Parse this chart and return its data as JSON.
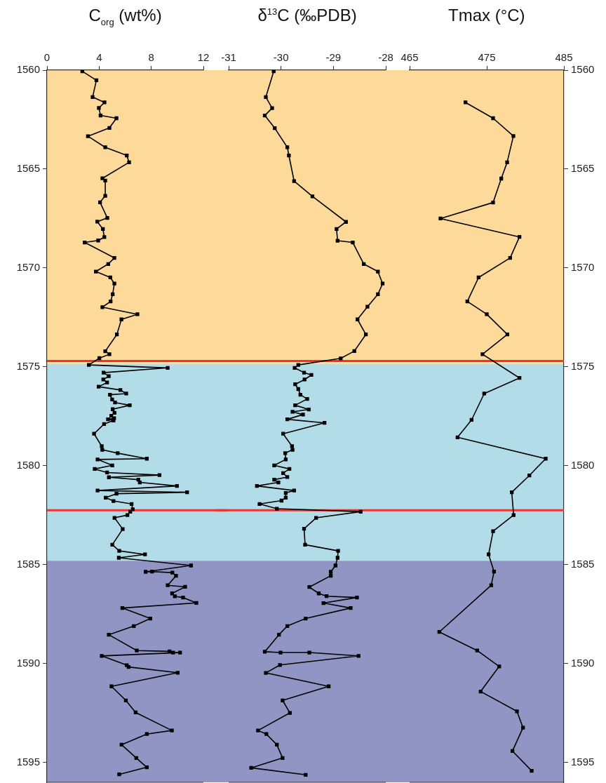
{
  "chart_data": [
    {
      "type": "line",
      "xlabel": "C$_{org}$ (wt%)",
      "color": "#000000",
      "marker": "square",
      "line_style": "solid",
      "legend": false,
      "xlim": [
        0,
        12
      ],
      "xticks": [
        0,
        4,
        8,
        12
      ],
      "ylim": [
        1596,
        1560
      ],
      "yticks": [
        1560,
        1565,
        1570,
        1575,
        1580,
        1585,
        1590,
        1595
      ],
      "x": [
        2.71,
        3.79,
        3.5,
        4.41,
        3.98,
        4.11,
        5.33,
        4.79,
        3.14,
        4.47,
        6.12,
        6.3,
        4.25,
        4.47,
        4.47,
        4.07,
        4.63,
        3.86,
        4.29,
        4.4,
        3.93,
        2.89,
        5.17,
        4.7,
        3.75,
        4.86,
        5.17,
        5.04,
        4.88,
        4.25,
        6.94,
        5.71,
        5.36,
        4.47,
        4.79,
        4.02,
        3.21,
        9.26,
        4.34,
        4.74,
        4.32,
        4.61,
        3.96,
        5.63,
        6.08,
        4.83,
        5.0,
        5.22,
        6.35,
        5.04,
        5.18,
        4.93,
        5.15,
        4.68,
        5.1,
        4.38,
        3.61,
        4.2,
        4.24,
        5.42,
        7.66,
        3.88,
        5.01,
        3.66,
        4.61,
        8.63,
        4.75,
        7.01,
        7.12,
        9.97,
        3.88,
        10.75,
        5.33,
        4.5,
        5.1,
        6.49,
        6.58,
        6.39,
        6.17,
        5.18,
        5.81,
        5.01,
        5.54,
        7.52,
        5.51,
        11.05,
        7.57,
        8.06,
        9.62,
        9.9,
        9.26,
        10.6,
        9.6,
        9.81,
        10.44,
        11.46,
        5.78,
        7.93,
        6.66,
        4.74,
        6.89,
        9.4,
        9.67,
        10.21,
        4.2,
        6.12,
        6.26,
        10.03,
        4.95,
        6.05,
        6.8,
        9.58,
        7.66,
        5.72,
        6.85,
        7.66,
        5.54
      ],
      "values": [
        1560.06,
        1560.51,
        1561.36,
        1561.63,
        1561.91,
        1562.29,
        1562.43,
        1562.92,
        1563.34,
        1563.9,
        1564.31,
        1564.66,
        1565.47,
        1565.58,
        1566.35,
        1566.68,
        1567.47,
        1567.66,
        1568.03,
        1568.44,
        1568.61,
        1568.71,
        1569.49,
        1569.8,
        1570.18,
        1570.48,
        1570.79,
        1571.33,
        1571.69,
        1571.98,
        1572.34,
        1572.6,
        1573.36,
        1574.21,
        1574.36,
        1574.56,
        1574.9,
        1575.05,
        1575.29,
        1575.47,
        1575.64,
        1575.79,
        1576.0,
        1576.17,
        1576.35,
        1576.41,
        1576.65,
        1576.8,
        1576.94,
        1577.14,
        1577.32,
        1577.47,
        1577.6,
        1577.65,
        1577.71,
        1577.89,
        1578.38,
        1579.01,
        1579.19,
        1579.36,
        1579.64,
        1579.68,
        1579.98,
        1580.16,
        1580.34,
        1580.47,
        1580.58,
        1580.7,
        1580.84,
        1581.02,
        1581.25,
        1581.34,
        1581.41,
        1581.61,
        1581.78,
        1581.93,
        1582.2,
        1582.32,
        1582.49,
        1582.63,
        1583.2,
        1583.99,
        1584.3,
        1584.48,
        1584.65,
        1585.04,
        1585.36,
        1585.35,
        1585.4,
        1585.56,
        1586.04,
        1586.12,
        1586.45,
        1586.6,
        1586.66,
        1586.93,
        1587.19,
        1587.72,
        1588.1,
        1588.54,
        1589.34,
        1589.38,
        1589.44,
        1589.44,
        1589.61,
        1590.08,
        1590.17,
        1590.46,
        1591.15,
        1591.86,
        1592.47,
        1593.38,
        1593.56,
        1594.1,
        1594.77,
        1595.24,
        1595.6
      ],
      "bands": [
        {
          "axis": "y",
          "from": 1560,
          "to": 1574.85,
          "color": "#fdd99a"
        },
        {
          "axis": "y",
          "from": 1574.85,
          "to": 1584.8,
          "color": "#b2dce7"
        },
        {
          "axis": "y",
          "from": 1584.8,
          "to": 1596,
          "color": "#9095c3"
        }
      ],
      "ref_lines": [
        {
          "axis": "y",
          "value": 1574.7,
          "color": "#ee3333"
        },
        {
          "axis": "y",
          "value": 1582.25,
          "color": "#ee3333"
        }
      ]
    },
    {
      "type": "line",
      "xlabel": "δ$^{13}$C (‰PDB)",
      "color": "#000000",
      "marker": "square",
      "line_style": "solid",
      "legend": false,
      "tick_labels": "x",
      "xlim": [
        -31,
        -28
      ],
      "xticks": [
        -31,
        -30,
        -29,
        -28
      ],
      "ylim": [
        1596,
        1560
      ],
      "yticks": [
        1560,
        1565,
        1570,
        1575,
        1580,
        1585,
        1590,
        1595
      ],
      "x": [
        -30.14,
        -30.29,
        -30.17,
        -30.31,
        -30.12,
        -29.88,
        -29.85,
        -29.75,
        -29.4,
        -28.76,
        -28.94,
        -28.92,
        -28.63,
        -28.42,
        -28.15,
        -28.06,
        -28.15,
        -28.35,
        -28.54,
        -28.38,
        -28.6,
        -28.86,
        -29.67,
        -29.74,
        -29.56,
        -29.42,
        -29.55,
        -29.73,
        -29.67,
        -29.63,
        -29.5,
        -29.73,
        -29.47,
        -29.78,
        -29.58,
        -29.88,
        -29.17,
        -29.96,
        -29.79,
        -29.78,
        -29.92,
        -29.91,
        -30.13,
        -29.84,
        -29.96,
        -29.88,
        -30.13,
        -30.05,
        -30.46,
        -29.75,
        -29.91,
        -29.91,
        -29.99,
        -30.41,
        -30.08,
        -28.48,
        -29.33,
        -29.56,
        -29.54,
        -28.91,
        -28.92,
        -28.96,
        -29.05,
        -29.05,
        -29.46,
        -29.28,
        -29.13,
        -28.55,
        -29.19,
        -28.67,
        -29.53,
        -29.88,
        -30.04,
        -30.31,
        -30.01,
        -29.46,
        -28.52,
        -30.02,
        -30.29,
        -29.09,
        -29.97,
        -29.83,
        -30.44,
        -30.28,
        -30.08,
        -29.97,
        -30.57,
        -29.53
      ],
      "values": [
        1560.06,
        1561.36,
        1561.92,
        1562.29,
        1562.93,
        1563.9,
        1564.31,
        1565.61,
        1566.38,
        1567.67,
        1568.03,
        1568.62,
        1568.71,
        1569.8,
        1570.18,
        1570.79,
        1571.33,
        1571.96,
        1572.6,
        1573.36,
        1574.2,
        1574.57,
        1574.9,
        1575.05,
        1575.29,
        1575.41,
        1575.64,
        1575.88,
        1576.12,
        1576.41,
        1576.62,
        1576.94,
        1577.15,
        1577.27,
        1577.41,
        1577.65,
        1577.83,
        1578.38,
        1579.01,
        1579.19,
        1579.36,
        1579.68,
        1579.98,
        1580.16,
        1580.37,
        1580.57,
        1580.7,
        1580.84,
        1581.02,
        1581.25,
        1581.37,
        1581.61,
        1581.76,
        1581.93,
        1582.17,
        1582.32,
        1582.63,
        1583.18,
        1583.99,
        1584.3,
        1584.65,
        1585.04,
        1585.36,
        1585.56,
        1586.13,
        1586.45,
        1586.59,
        1586.66,
        1586.94,
        1587.19,
        1587.72,
        1588.1,
        1588.54,
        1589.4,
        1589.44,
        1589.44,
        1589.61,
        1590.07,
        1590.47,
        1591.15,
        1591.86,
        1592.49,
        1593.38,
        1593.56,
        1594.1,
        1594.77,
        1595.27,
        1595.62
      ],
      "bands": [
        {
          "axis": "y",
          "from": 1560,
          "to": 1574.85,
          "color": "#fdd99a"
        },
        {
          "axis": "y",
          "from": 1574.85,
          "to": 1584.8,
          "color": "#b2dce7"
        },
        {
          "axis": "y",
          "from": 1584.8,
          "to": 1596,
          "color": "#9095c3"
        }
      ],
      "ref_lines": [
        {
          "axis": "y",
          "value": 1574.7,
          "color": "#ee3333"
        },
        {
          "axis": "y",
          "value": 1582.25,
          "color": "#ee3333"
        }
      ]
    },
    {
      "type": "line",
      "xlabel": "Tmax (°C)",
      "color": "#000000",
      "marker": "square",
      "line_style": "solid",
      "legend": false,
      "xlim": [
        465,
        485
      ],
      "xticks": [
        465,
        475,
        485
      ],
      "ylim": [
        1596,
        1560
      ],
      "yticks": [
        1560,
        1565,
        1570,
        1575,
        1580,
        1585,
        1590,
        1595
      ],
      "x": [
        472.24,
        475.82,
        478.45,
        477.64,
        476.88,
        475.82,
        469.0,
        479.24,
        478.03,
        473.94,
        472.48,
        475.0,
        477.67,
        474.45,
        479.24,
        474.67,
        473.03,
        471.21,
        482.64,
        480.52,
        478.24,
        478.48,
        475.82,
        475.24,
        475.94,
        475.58,
        468.85,
        473.76,
        476.61,
        474.21,
        478.91,
        479.7,
        478.33,
        480.82
      ],
      "values": [
        1561.63,
        1562.43,
        1563.33,
        1564.66,
        1565.48,
        1566.69,
        1567.5,
        1568.43,
        1569.49,
        1570.48,
        1571.69,
        1572.34,
        1573.36,
        1574.36,
        1575.56,
        1576.35,
        1577.68,
        1578.56,
        1579.64,
        1580.49,
        1581.34,
        1582.49,
        1583.31,
        1584.48,
        1585.35,
        1586.04,
        1588.4,
        1589.34,
        1590.14,
        1591.41,
        1592.41,
        1593.24,
        1594.42,
        1595.42
      ],
      "bands": [
        {
          "axis": "y",
          "from": 1560,
          "to": 1574.85,
          "color": "#fdd99a"
        },
        {
          "axis": "y",
          "from": 1574.85,
          "to": 1584.8,
          "color": "#b2dce7"
        },
        {
          "axis": "y",
          "from": 1584.8,
          "to": 1596,
          "color": "#9095c3"
        }
      ],
      "ref_lines": [
        {
          "axis": "y",
          "value": 1574.7,
          "color": "#ee3333"
        },
        {
          "axis": "y",
          "value": 1582.25,
          "color": "#ee3333"
        }
      ]
    }
  ]
}
